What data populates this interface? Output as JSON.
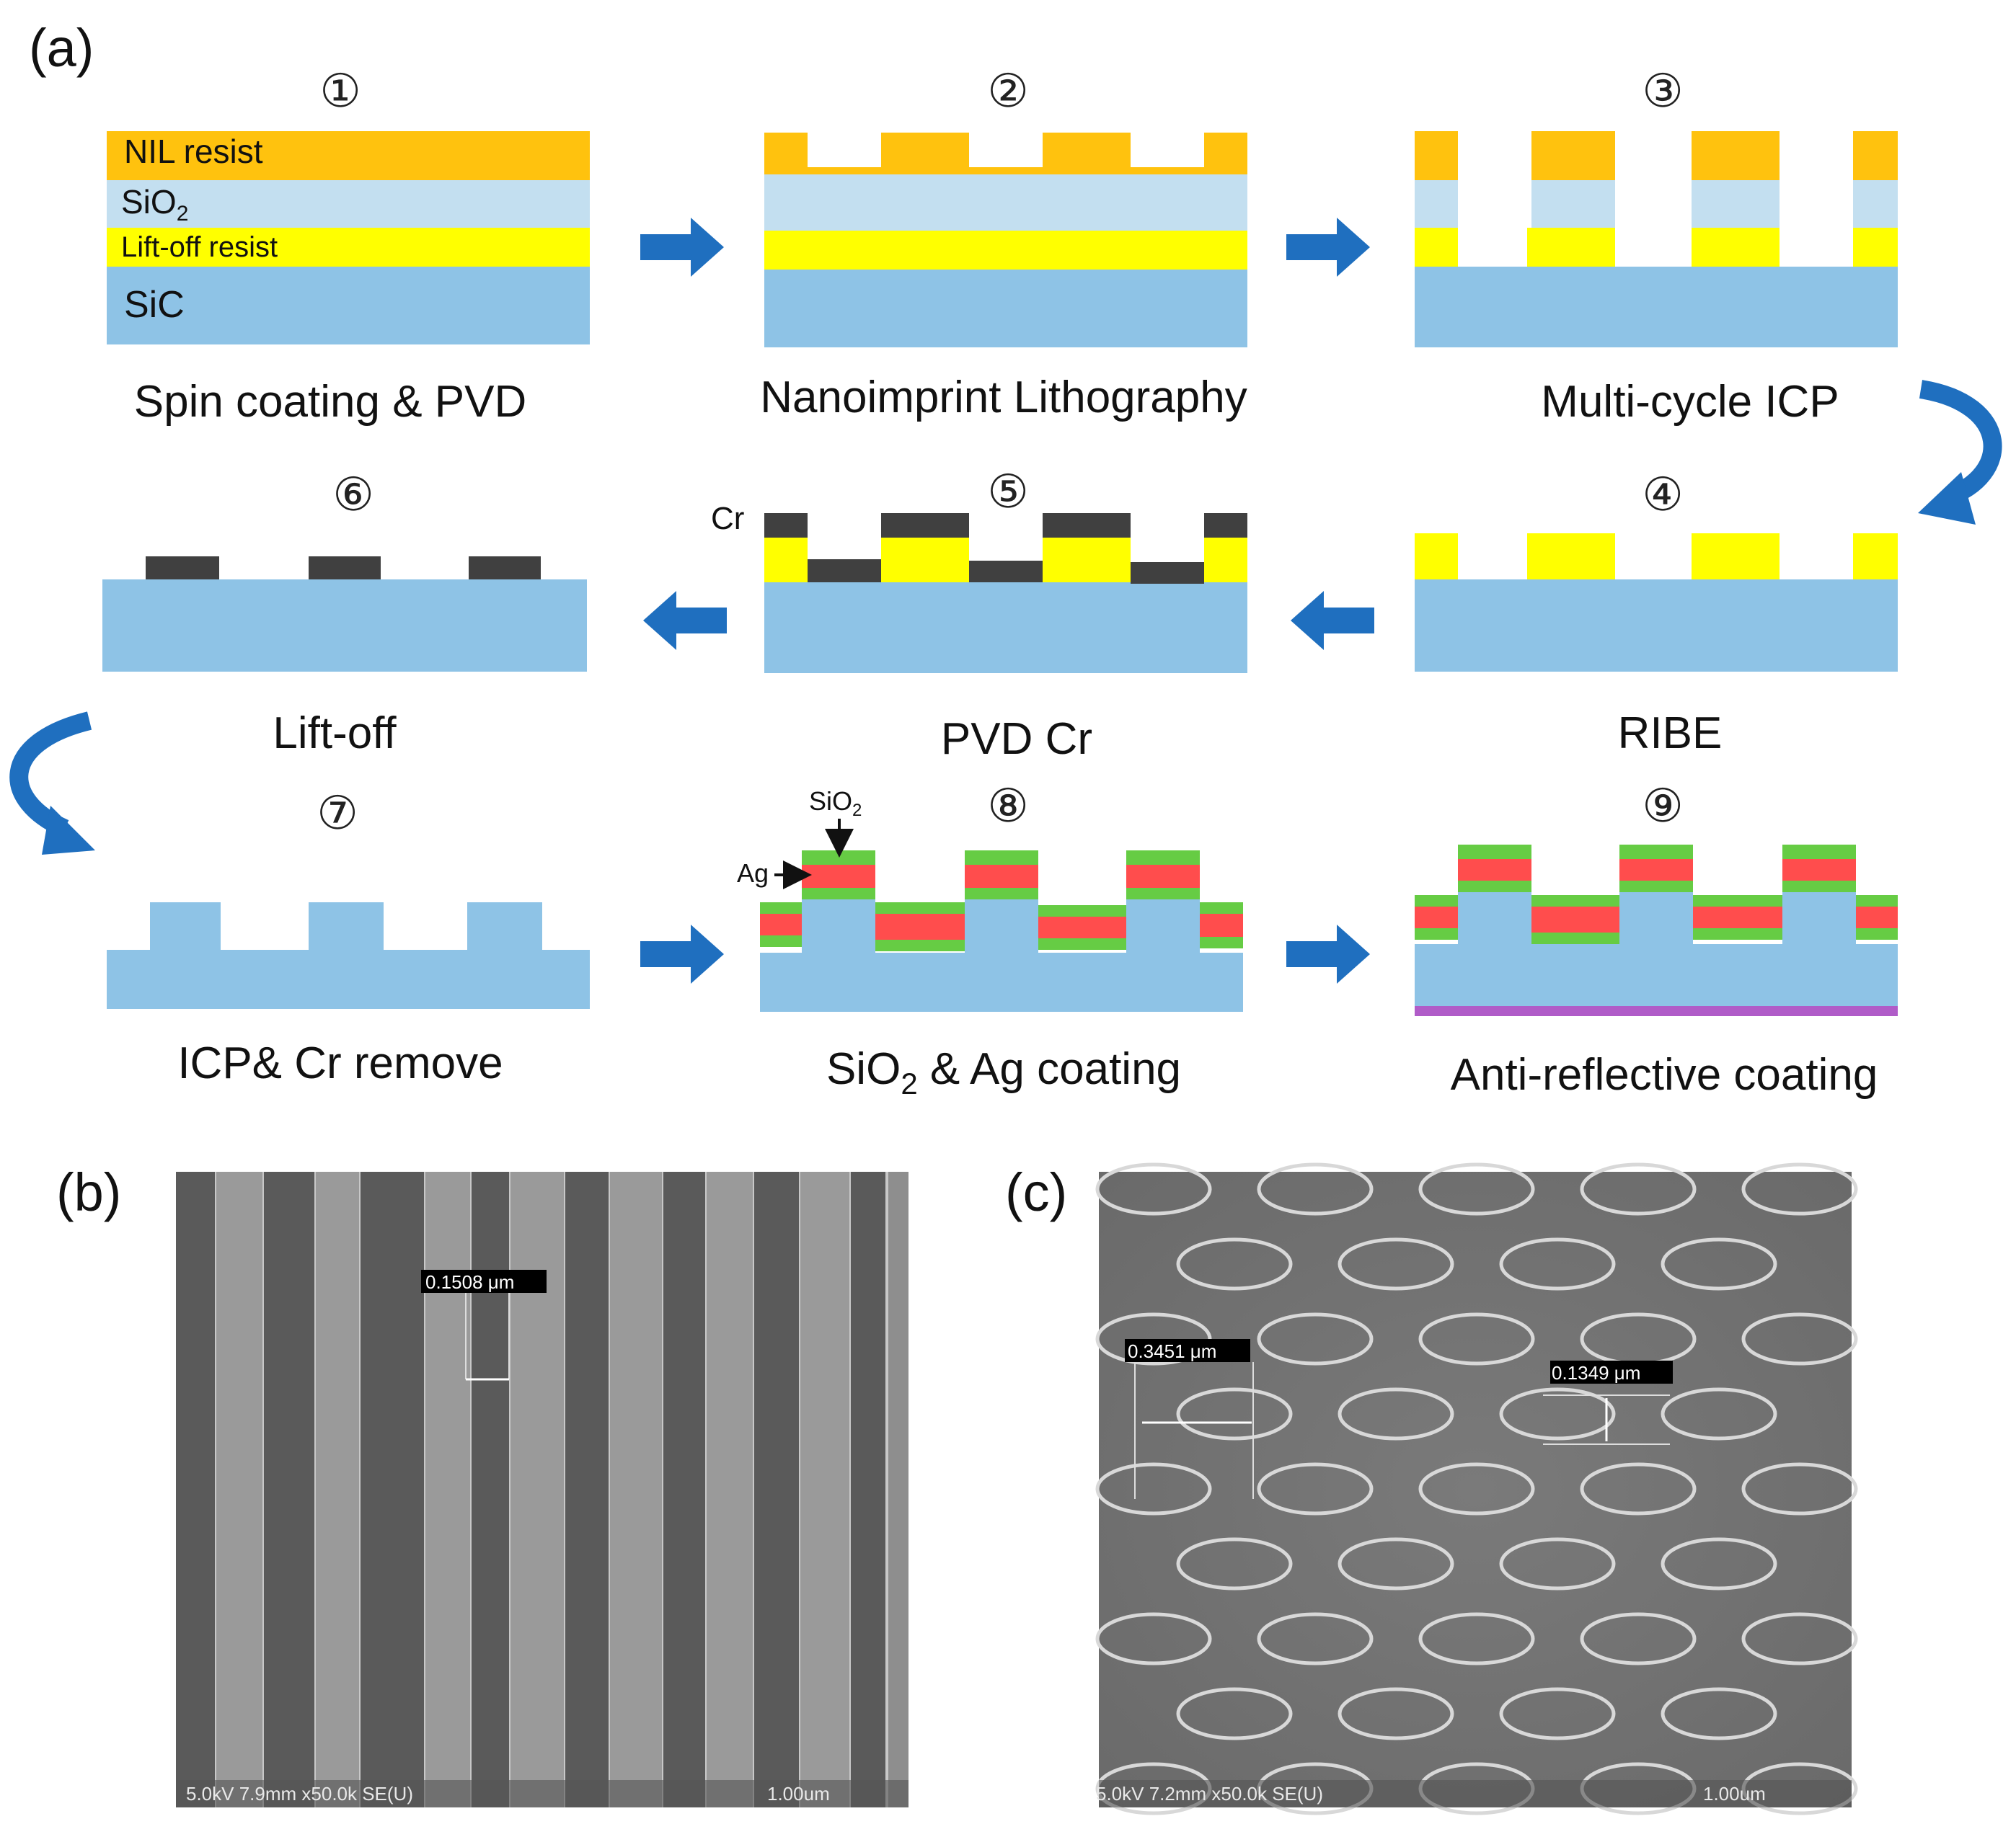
{
  "panel_labels": {
    "a": "(a)",
    "b": "(b)",
    "c": "(c)"
  },
  "colors": {
    "sic": "#8ec3e6",
    "sio2": "#c3dff0",
    "nil_resist": "#ffc20e",
    "liftoff_resist": "#ffff00",
    "cr": "#404040",
    "ag": "#ff4d4d",
    "sio2_coat": "#66cc44",
    "arc": "#b05cc8",
    "arrow": "#1f6fbf"
  },
  "steps": [
    {
      "num": "①",
      "caption": "Spin coating & PVD"
    },
    {
      "num": "②",
      "caption": "Nanoimprint Lithography"
    },
    {
      "num": "③",
      "caption": "Multi-cycle ICP"
    },
    {
      "num": "④",
      "caption": "RIBE"
    },
    {
      "num": "⑤",
      "caption": "PVD Cr"
    },
    {
      "num": "⑥",
      "caption": "Lift-off"
    },
    {
      "num": "⑦",
      "caption": "ICP& Cr remove"
    },
    {
      "num": "⑧",
      "caption_main": "SiO",
      "caption_sub": "2",
      "caption_tail": " & Ag coating"
    },
    {
      "num": "⑨",
      "caption": "Anti-reflective coating"
    }
  ],
  "layer_labels": {
    "nil": "NIL  resist",
    "sio2_main": "SiO",
    "sio2_sub": "2",
    "liftoff": "Lift-off resist",
    "sic": "SiC",
    "cr": "Cr",
    "ag": "Ag",
    "sio2_small_main": "SiO",
    "sio2_small_sub": "2"
  },
  "sem_b": {
    "measurement": "0.1508 μm",
    "info": "5.0kV 7.9mm x50.0k SE(U)",
    "scale": "1.00um"
  },
  "sem_c": {
    "measurement_1": "0.3451 μm",
    "measurement_2": "0.1349 μm",
    "info": "5.0kV 7.2mm x50.0k SE(U)",
    "scale": "1.00um"
  }
}
